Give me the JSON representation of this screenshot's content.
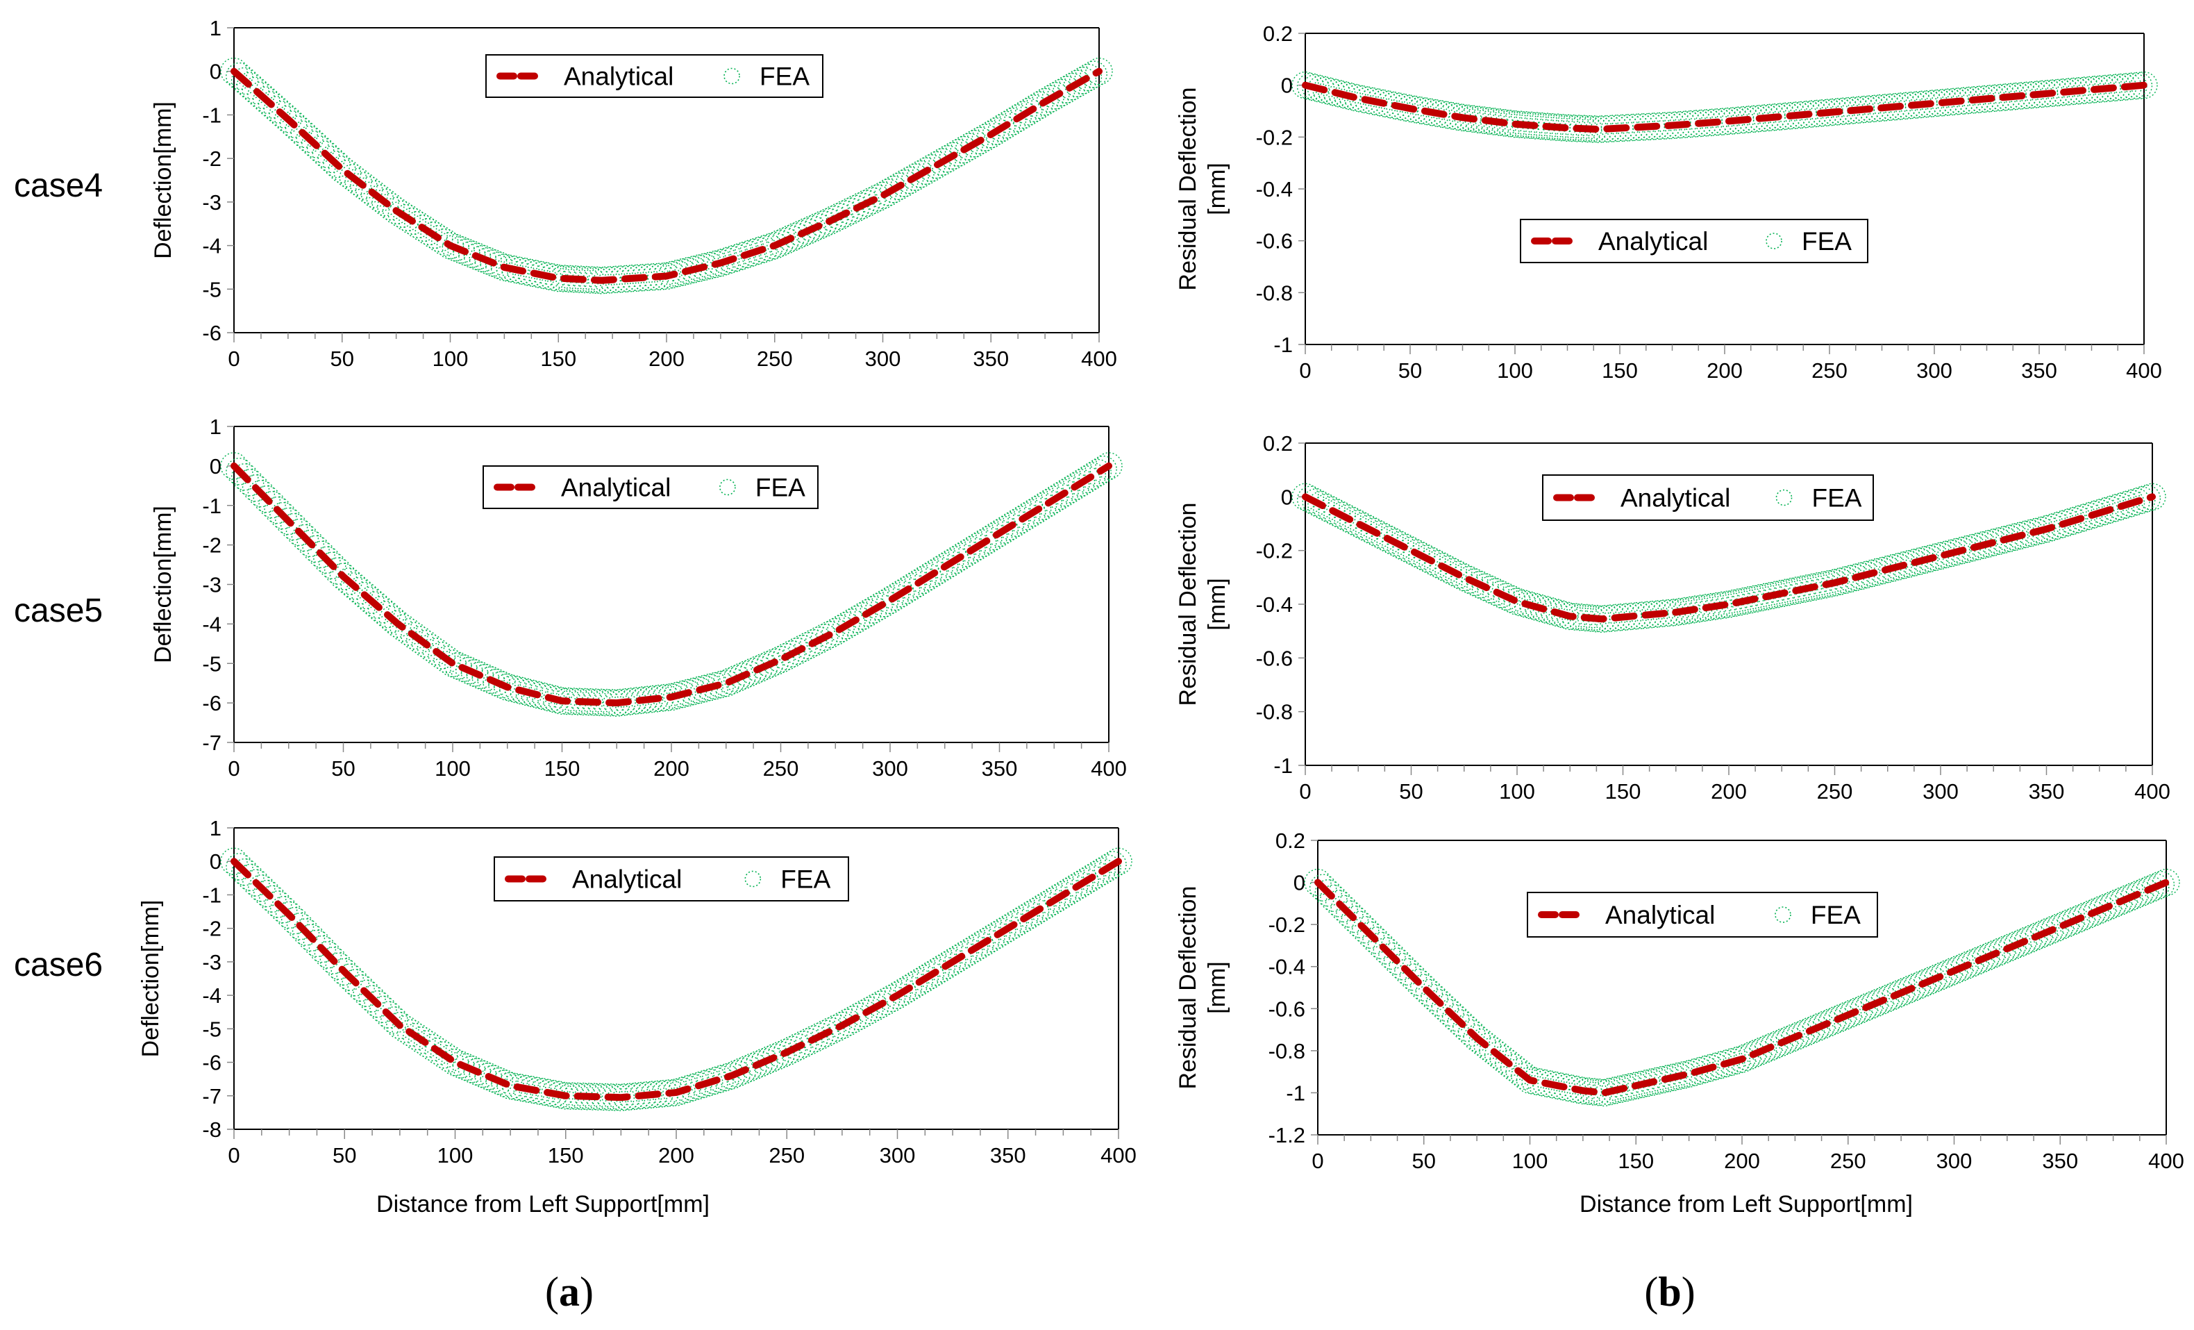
{
  "figure": {
    "case_labels": [
      "case4",
      "case5",
      "case6"
    ],
    "x_title": "Distance from Left Support[mm]",
    "panel_a": {
      "open": "(",
      "letter": "a",
      "close": ")"
    },
    "panel_b": {
      "open": "(",
      "letter": "b",
      "close": ")"
    },
    "colors": {
      "analytical": "#C00000",
      "fea": "#00B050",
      "axis": "#000000"
    }
  },
  "chart_data": [
    {
      "id": "a-case4",
      "type": "line",
      "column": "a",
      "ylabel": "Deflection[mm]",
      "xlim": [
        0,
        400
      ],
      "ylim": [
        -6,
        1
      ],
      "xticks": [
        0,
        50,
        100,
        150,
        200,
        250,
        300,
        350,
        400
      ],
      "yticks": [
        1,
        0,
        -1,
        -2,
        -3,
        -4,
        -5,
        -6
      ],
      "legend": [
        "Analytical",
        "FEA"
      ],
      "legend_position": "top-center",
      "x": [
        0,
        25,
        50,
        75,
        100,
        125,
        150,
        170,
        200,
        225,
        250,
        275,
        300,
        325,
        350,
        375,
        400
      ],
      "series": [
        {
          "name": "Analytical",
          "values": [
            0,
            -1.1,
            -2.25,
            -3.2,
            -4.0,
            -4.5,
            -4.75,
            -4.8,
            -4.7,
            -4.4,
            -4.0,
            -3.45,
            -2.85,
            -2.15,
            -1.45,
            -0.7,
            0
          ]
        },
        {
          "name": "FEA",
          "values": [
            0,
            -1.1,
            -2.25,
            -3.2,
            -4.0,
            -4.5,
            -4.75,
            -4.8,
            -4.7,
            -4.4,
            -4.0,
            -3.45,
            -2.85,
            -2.15,
            -1.45,
            -0.7,
            0
          ]
        }
      ]
    },
    {
      "id": "a-case5",
      "type": "line",
      "column": "a",
      "ylabel": "Deflection[mm]",
      "xlim": [
        0,
        400
      ],
      "ylim": [
        -7,
        1
      ],
      "xticks": [
        0,
        50,
        100,
        150,
        200,
        250,
        300,
        350,
        400
      ],
      "yticks": [
        1,
        0,
        -1,
        -2,
        -3,
        -4,
        -5,
        -6,
        -7
      ],
      "legend": [
        "Analytical",
        "FEA"
      ],
      "legend_position": "top-center",
      "x": [
        0,
        25,
        50,
        75,
        100,
        125,
        150,
        175,
        200,
        225,
        250,
        275,
        300,
        325,
        350,
        375,
        400
      ],
      "series": [
        {
          "name": "Analytical",
          "values": [
            0,
            -1.4,
            -2.8,
            -4.0,
            -5.0,
            -5.6,
            -5.95,
            -6.0,
            -5.85,
            -5.5,
            -4.9,
            -4.2,
            -3.4,
            -2.55,
            -1.7,
            -0.85,
            0
          ]
        },
        {
          "name": "FEA",
          "values": [
            0,
            -1.4,
            -2.8,
            -4.0,
            -5.0,
            -5.6,
            -5.95,
            -6.0,
            -5.85,
            -5.5,
            -4.9,
            -4.2,
            -3.4,
            -2.55,
            -1.7,
            -0.85,
            0
          ]
        }
      ]
    },
    {
      "id": "a-case6",
      "type": "line",
      "column": "a",
      "ylabel": "Deflection[mm]",
      "xlim": [
        0,
        400
      ],
      "ylim": [
        -8,
        1
      ],
      "xticks": [
        0,
        50,
        100,
        150,
        200,
        250,
        300,
        350,
        400
      ],
      "yticks": [
        1,
        0,
        -1,
        -2,
        -3,
        -4,
        -5,
        -6,
        -7,
        -8
      ],
      "legend": [
        "Analytical",
        "FEA"
      ],
      "legend_position": "top-center",
      "x": [
        0,
        25,
        50,
        75,
        100,
        125,
        150,
        175,
        200,
        225,
        250,
        275,
        300,
        325,
        350,
        375,
        400
      ],
      "series": [
        {
          "name": "Analytical",
          "values": [
            0,
            -1.6,
            -3.3,
            -4.9,
            -6.0,
            -6.7,
            -7.0,
            -7.05,
            -6.9,
            -6.4,
            -5.7,
            -4.9,
            -4.0,
            -3.0,
            -2.0,
            -1.0,
            0
          ]
        },
        {
          "name": "FEA",
          "values": [
            0,
            -1.6,
            -3.3,
            -4.9,
            -6.0,
            -6.7,
            -7.0,
            -7.05,
            -6.9,
            -6.4,
            -5.7,
            -4.9,
            -4.0,
            -3.0,
            -2.0,
            -1.0,
            0
          ]
        }
      ]
    },
    {
      "id": "b-case4",
      "type": "line",
      "column": "b",
      "ylabel": [
        "Residual Deflection",
        "[mm]"
      ],
      "xlim": [
        0,
        400
      ],
      "ylim": [
        -1,
        0.2
      ],
      "xticks": [
        0,
        50,
        100,
        150,
        200,
        250,
        300,
        350,
        400
      ],
      "yticks": [
        0.2,
        0,
        -0.2,
        -0.4,
        -0.6,
        -0.8,
        -1
      ],
      "legend": [
        "Analytical",
        "FEA"
      ],
      "legend_position": "center",
      "x": [
        0,
        25,
        50,
        75,
        100,
        125,
        140,
        175,
        200,
        250,
        300,
        350,
        400
      ],
      "series": [
        {
          "name": "Analytical",
          "values": [
            0,
            -0.05,
            -0.09,
            -0.125,
            -0.15,
            -0.165,
            -0.17,
            -0.155,
            -0.14,
            -0.105,
            -0.07,
            -0.035,
            0
          ]
        },
        {
          "name": "FEA",
          "values": [
            0,
            -0.05,
            -0.09,
            -0.125,
            -0.15,
            -0.165,
            -0.17,
            -0.155,
            -0.14,
            -0.105,
            -0.07,
            -0.035,
            0
          ]
        }
      ]
    },
    {
      "id": "b-case5",
      "type": "line",
      "column": "b",
      "ylabel": [
        "Residual Deflection",
        "[mm]"
      ],
      "xlim": [
        0,
        400
      ],
      "ylim": [
        -1,
        0.2
      ],
      "xticks": [
        0,
        50,
        100,
        150,
        200,
        250,
        300,
        350,
        400
      ],
      "yticks": [
        0.2,
        0,
        -0.2,
        -0.4,
        -0.6,
        -0.8,
        -1
      ],
      "legend": [
        "Analytical",
        "FEA"
      ],
      "legend_position": "top-center",
      "x": [
        0,
        25,
        50,
        75,
        100,
        125,
        140,
        175,
        200,
        250,
        300,
        350,
        400
      ],
      "series": [
        {
          "name": "Analytical",
          "values": [
            0,
            -0.1,
            -0.2,
            -0.3,
            -0.39,
            -0.445,
            -0.455,
            -0.43,
            -0.4,
            -0.32,
            -0.22,
            -0.12,
            0
          ]
        },
        {
          "name": "FEA",
          "values": [
            0,
            -0.1,
            -0.2,
            -0.3,
            -0.39,
            -0.445,
            -0.455,
            -0.43,
            -0.4,
            -0.32,
            -0.22,
            -0.12,
            0
          ]
        }
      ]
    },
    {
      "id": "b-case6",
      "type": "line",
      "column": "b",
      "ylabel": [
        "Residual Deflection",
        "[mm]"
      ],
      "xlim": [
        0,
        400
      ],
      "ylim": [
        -1.2,
        0.2
      ],
      "xticks": [
        0,
        50,
        100,
        150,
        200,
        250,
        300,
        350,
        400
      ],
      "yticks": [
        0.2,
        0,
        -0.2,
        -0.4,
        -0.6,
        -0.8,
        -1,
        -1.2
      ],
      "legend": [
        "Analytical",
        "FEA"
      ],
      "legend_position": "top-center",
      "x": [
        0,
        25,
        50,
        75,
        100,
        125,
        135,
        175,
        200,
        250,
        300,
        350,
        400
      ],
      "series": [
        {
          "name": "Analytical",
          "values": [
            0,
            -0.25,
            -0.5,
            -0.74,
            -0.94,
            -0.99,
            -1.0,
            -0.91,
            -0.84,
            -0.63,
            -0.42,
            -0.21,
            0
          ]
        },
        {
          "name": "FEA",
          "values": [
            0,
            -0.25,
            -0.5,
            -0.74,
            -0.94,
            -0.99,
            -1.0,
            -0.91,
            -0.84,
            -0.63,
            -0.42,
            -0.21,
            0
          ]
        }
      ]
    }
  ]
}
